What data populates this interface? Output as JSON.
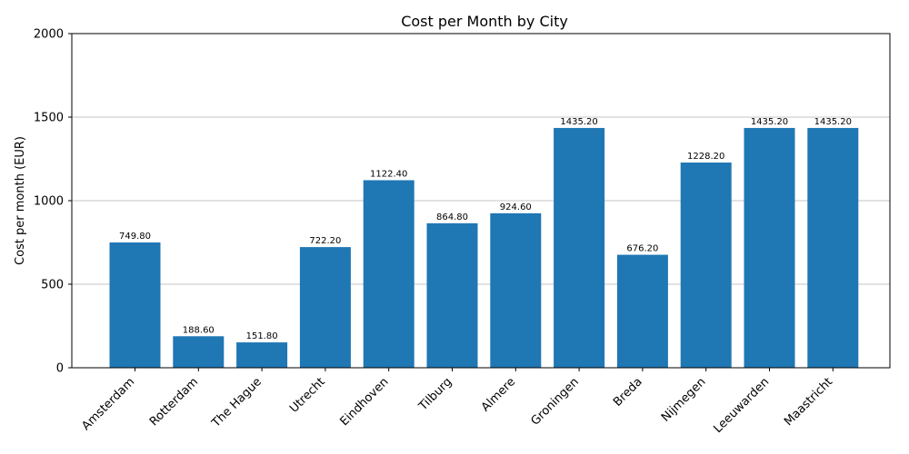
{
  "chart_data": {
    "type": "bar",
    "title": "Cost per Month by City",
    "xlabel": "",
    "ylabel": "Cost per month (EUR)",
    "ylim": [
      0,
      2000
    ],
    "yticks": [
      0,
      500,
      1000,
      1500,
      2000
    ],
    "grid": "horizontal",
    "bar_color": "#1f77b4",
    "categories": [
      "Amsterdam",
      "Rotterdam",
      "The Hague",
      "Utrecht",
      "Eindhoven",
      "Tilburg",
      "Almere",
      "Groningen",
      "Breda",
      "Nijmegen",
      "Leeuwarden",
      "Maastricht"
    ],
    "values": [
      749.8,
      188.6,
      151.8,
      722.2,
      1122.4,
      864.8,
      924.6,
      1435.2,
      676.2,
      1228.2,
      1435.2,
      1435.2
    ],
    "value_labels": [
      "749.80",
      "188.60",
      "151.80",
      "722.20",
      "1122.40",
      "864.80",
      "924.60",
      "1435.20",
      "676.20",
      "1228.20",
      "1435.20",
      "1435.20"
    ]
  }
}
